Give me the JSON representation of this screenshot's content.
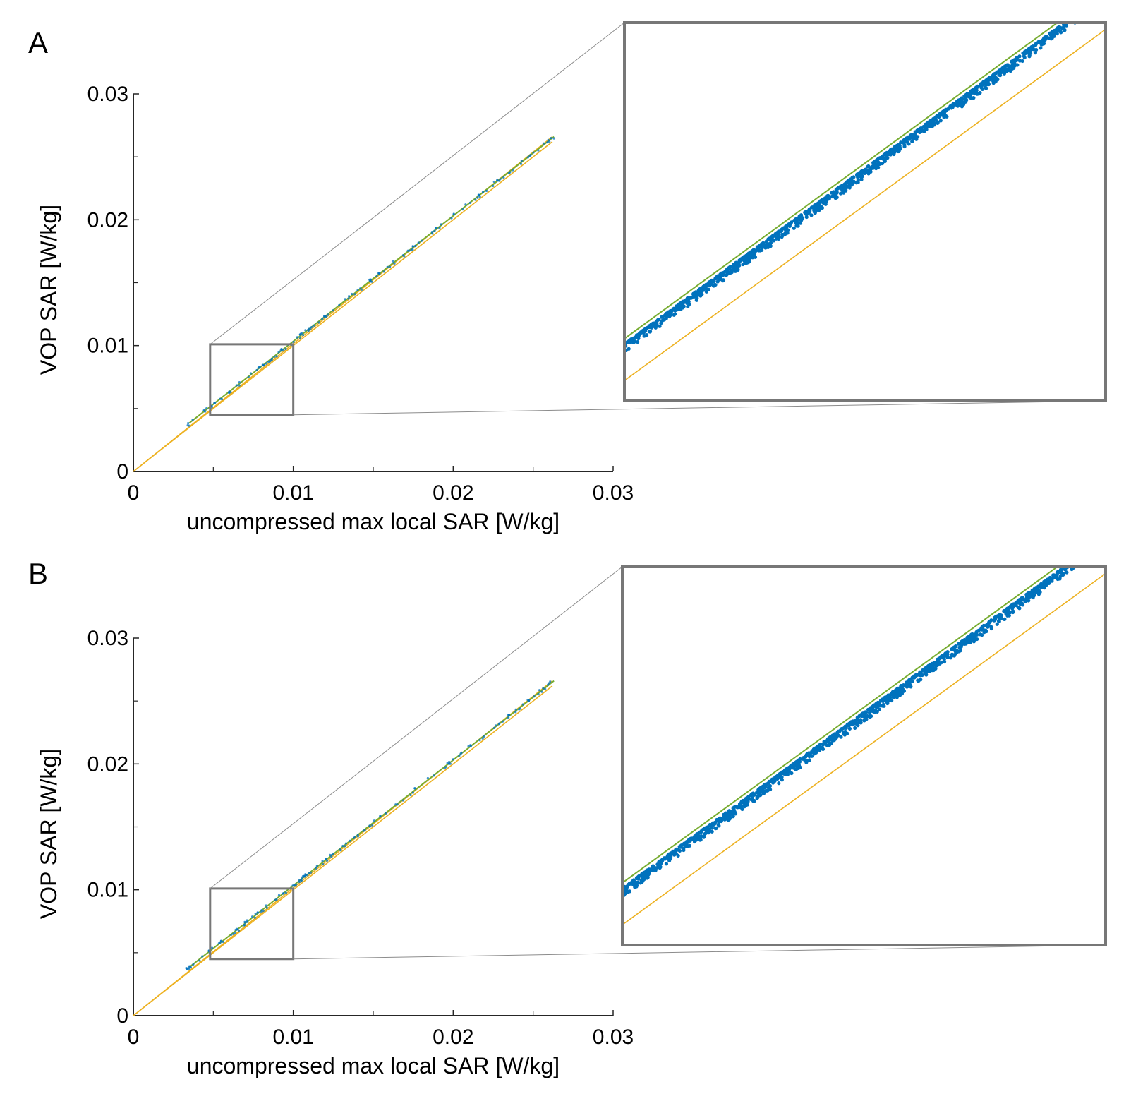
{
  "colors": {
    "scatter": "#0072bd",
    "identity_line": "#edb120",
    "fit_line": "#77ac30",
    "axis": "#262626",
    "zoom_box": "#777777",
    "zoom_connector": "#8c8c8c"
  },
  "chart_data": [
    {
      "panel_label": "A",
      "type": "scatter",
      "xlabel": "uncompressed max local SAR [W/kg]",
      "ylabel": "VOP SAR [W/kg]",
      "xlim": [
        0,
        0.03
      ],
      "ylim": [
        0,
        0.03
      ],
      "xticks": [
        0,
        0.01,
        0.02,
        0.03
      ],
      "xtick_labels": [
        "0",
        "0.01",
        "0.02",
        "0.03"
      ],
      "yticks": [
        0,
        0.01,
        0.02,
        0.03
      ],
      "ytick_labels": [
        "0",
        "0.01",
        "0.02",
        "0.03"
      ],
      "minor_ticks": [
        0.005,
        0.015,
        0.025
      ],
      "scatter_range": [
        0.0033,
        0.0263
      ],
      "scatter_overestimate": 0.0004,
      "lines": [
        {
          "name": "identity",
          "x": [
            0,
            0.0262
          ],
          "y": [
            0,
            0.0262
          ],
          "color": "identity_line"
        },
        {
          "name": "upper bound",
          "x": [
            0,
            0.0262
          ],
          "y": [
            0,
            0.0266
          ],
          "color": "identity_line"
        },
        {
          "name": "fit",
          "x": [
            0.0035,
            0.0263
          ],
          "y": [
            0.00385,
            0.0266
          ],
          "color": "fit_line"
        }
      ],
      "zoom": {
        "xlim": [
          0.0048,
          0.01
        ],
        "ylim": [
          0.0045,
          0.0101
        ]
      }
    },
    {
      "panel_label": "B",
      "type": "scatter",
      "xlabel": "uncompressed max local SAR [W/kg]",
      "ylabel": "VOP SAR [W/kg]",
      "xlim": [
        0,
        0.03
      ],
      "ylim": [
        0,
        0.03
      ],
      "xticks": [
        0,
        0.01,
        0.02,
        0.03
      ],
      "xtick_labels": [
        "0",
        "0.01",
        "0.02",
        "0.03"
      ],
      "yticks": [
        0,
        0.01,
        0.02,
        0.03
      ],
      "ytick_labels": [
        "0",
        "0.01",
        "0.02",
        "0.03"
      ],
      "minor_ticks": [
        0.005,
        0.015,
        0.025
      ],
      "scatter_range": [
        0.0033,
        0.0263
      ],
      "scatter_overestimate": 0.0004,
      "lines": [
        {
          "name": "identity",
          "x": [
            0,
            0.0262
          ],
          "y": [
            0,
            0.0262
          ],
          "color": "identity_line"
        },
        {
          "name": "upper bound",
          "x": [
            0,
            0.0262
          ],
          "y": [
            0,
            0.0266
          ],
          "color": "identity_line"
        },
        {
          "name": "fit",
          "x": [
            0.0035,
            0.0263
          ],
          "y": [
            0.00385,
            0.0266
          ],
          "color": "fit_line"
        }
      ],
      "zoom": {
        "xlim": [
          0.0048,
          0.01
        ],
        "ylim": [
          0.0045,
          0.0101
        ]
      }
    }
  ]
}
